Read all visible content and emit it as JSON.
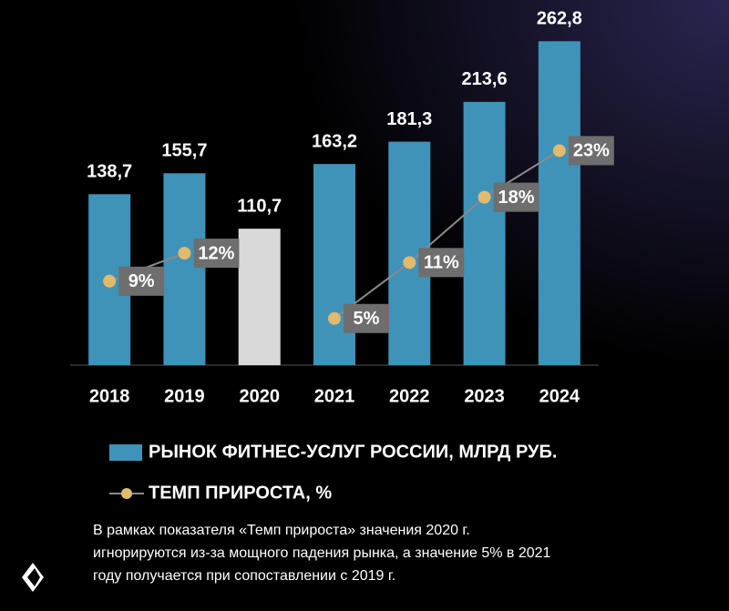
{
  "chart_data": {
    "type": "bar",
    "categories": [
      "2018",
      "2019",
      "2020",
      "2021",
      "2022",
      "2023",
      "2024"
    ],
    "ylim": [
      0,
      280
    ],
    "y2lim": [
      0,
      37
    ],
    "series": [
      {
        "name": "РЫНОК ФИТНЕС-УСЛУГ РОССИИ, МЛРД РУБ.",
        "type": "bar",
        "color": "#3f93b9",
        "colors": [
          "#3f93b9",
          "#3f93b9",
          "#d9d9d9",
          "#3f93b9",
          "#3f93b9",
          "#3f93b9",
          "#3f93b9"
        ],
        "values": [
          138.7,
          155.7,
          110.7,
          163.2,
          181.3,
          213.6,
          262.8
        ],
        "value_labels": [
          "138,7",
          "155,7",
          "110,7",
          "163,2",
          "181,3",
          "213,6",
          "262,8"
        ]
      },
      {
        "name": "ТЕМП ПРИРОСТА, %",
        "type": "line",
        "axis": "y2",
        "color": "#8a8a8a",
        "marker_color": "#e2ba6c",
        "values": [
          9,
          12,
          null,
          5,
          11,
          18,
          23
        ],
        "value_labels": [
          "9%",
          "12%",
          null,
          "5%",
          "11%",
          "18%",
          "23%"
        ]
      }
    ],
    "note": [
      "В рамках показателя «Темп прироста» значения 2020 г.",
      "игнорируются из-за мощного падения рынка, а значение 5% в 2021",
      "году получается при сопоставлении с 2019 г."
    ]
  }
}
